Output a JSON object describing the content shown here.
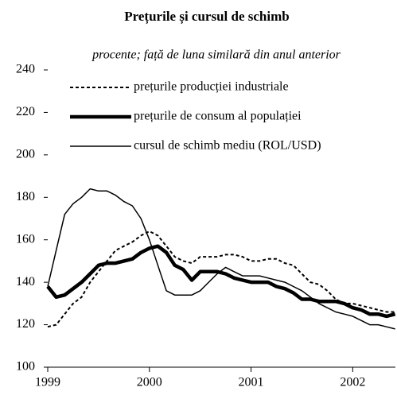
{
  "chart_data": {
    "type": "line",
    "title": "Prețurile și cursul de schimb",
    "subtitle": "procente; față de luna similară din anul anterior",
    "x": [
      1999,
      1999.083,
      1999.167,
      1999.25,
      1999.333,
      1999.417,
      1999.5,
      1999.583,
      1999.667,
      1999.75,
      1999.833,
      1999.917,
      2000,
      2000.083,
      2000.167,
      2000.25,
      2000.333,
      2000.417,
      2000.5,
      2000.583,
      2000.667,
      2000.75,
      2000.833,
      2000.917,
      2001,
      2001.083,
      2001.167,
      2001.25,
      2001.333,
      2001.417,
      2001.5,
      2001.583,
      2001.667,
      2001.75,
      2001.833,
      2001.917,
      2002,
      2002.083,
      2002.167,
      2002.25,
      2002.333,
      2002.417
    ],
    "series": [
      {
        "name": "prețurile producției industriale",
        "color": "#000",
        "style": "dashed",
        "values": [
          119,
          120,
          125,
          130,
          133,
          140,
          145,
          150,
          155,
          157,
          159,
          162,
          164,
          162,
          157,
          152,
          150,
          149,
          152,
          152,
          152,
          153,
          153,
          152,
          150,
          150,
          151,
          151,
          149,
          148,
          144,
          140,
          139,
          136,
          132,
          130,
          130,
          129,
          128,
          127,
          126,
          126
        ]
      },
      {
        "name": "prețurile de consum al populației",
        "color": "#000",
        "style": "thick",
        "values": [
          138,
          133,
          134,
          137,
          140,
          144,
          148,
          149,
          149,
          150,
          151,
          154,
          156,
          157,
          154,
          148,
          146,
          141,
          145,
          145,
          145,
          144,
          142,
          141,
          140,
          140,
          140,
          138,
          137,
          135,
          132,
          132,
          131,
          131,
          131,
          130,
          128,
          127,
          125,
          125,
          124,
          125
        ]
      },
      {
        "name": "cursul de schimb mediu (ROL/USD)",
        "color": "#000",
        "style": "thin",
        "values": [
          138,
          155,
          172,
          177,
          180,
          184,
          183,
          183,
          181,
          178,
          176,
          170,
          160,
          148,
          136,
          134,
          134,
          134,
          136,
          140,
          144,
          147,
          145,
          143,
          143,
          143,
          142,
          141,
          140,
          138,
          136,
          133,
          130,
          128,
          126,
          125,
          124,
          122,
          120,
          120,
          119,
          118
        ]
      }
    ],
    "xlim": [
      1999,
      2002.42
    ],
    "xticks": [
      1999,
      2000,
      2001,
      2002
    ],
    "ylim": [
      100,
      240
    ],
    "yticks": [
      100,
      120,
      140,
      160,
      180,
      200,
      220,
      240
    ],
    "grid": false,
    "legend": "top-left"
  }
}
